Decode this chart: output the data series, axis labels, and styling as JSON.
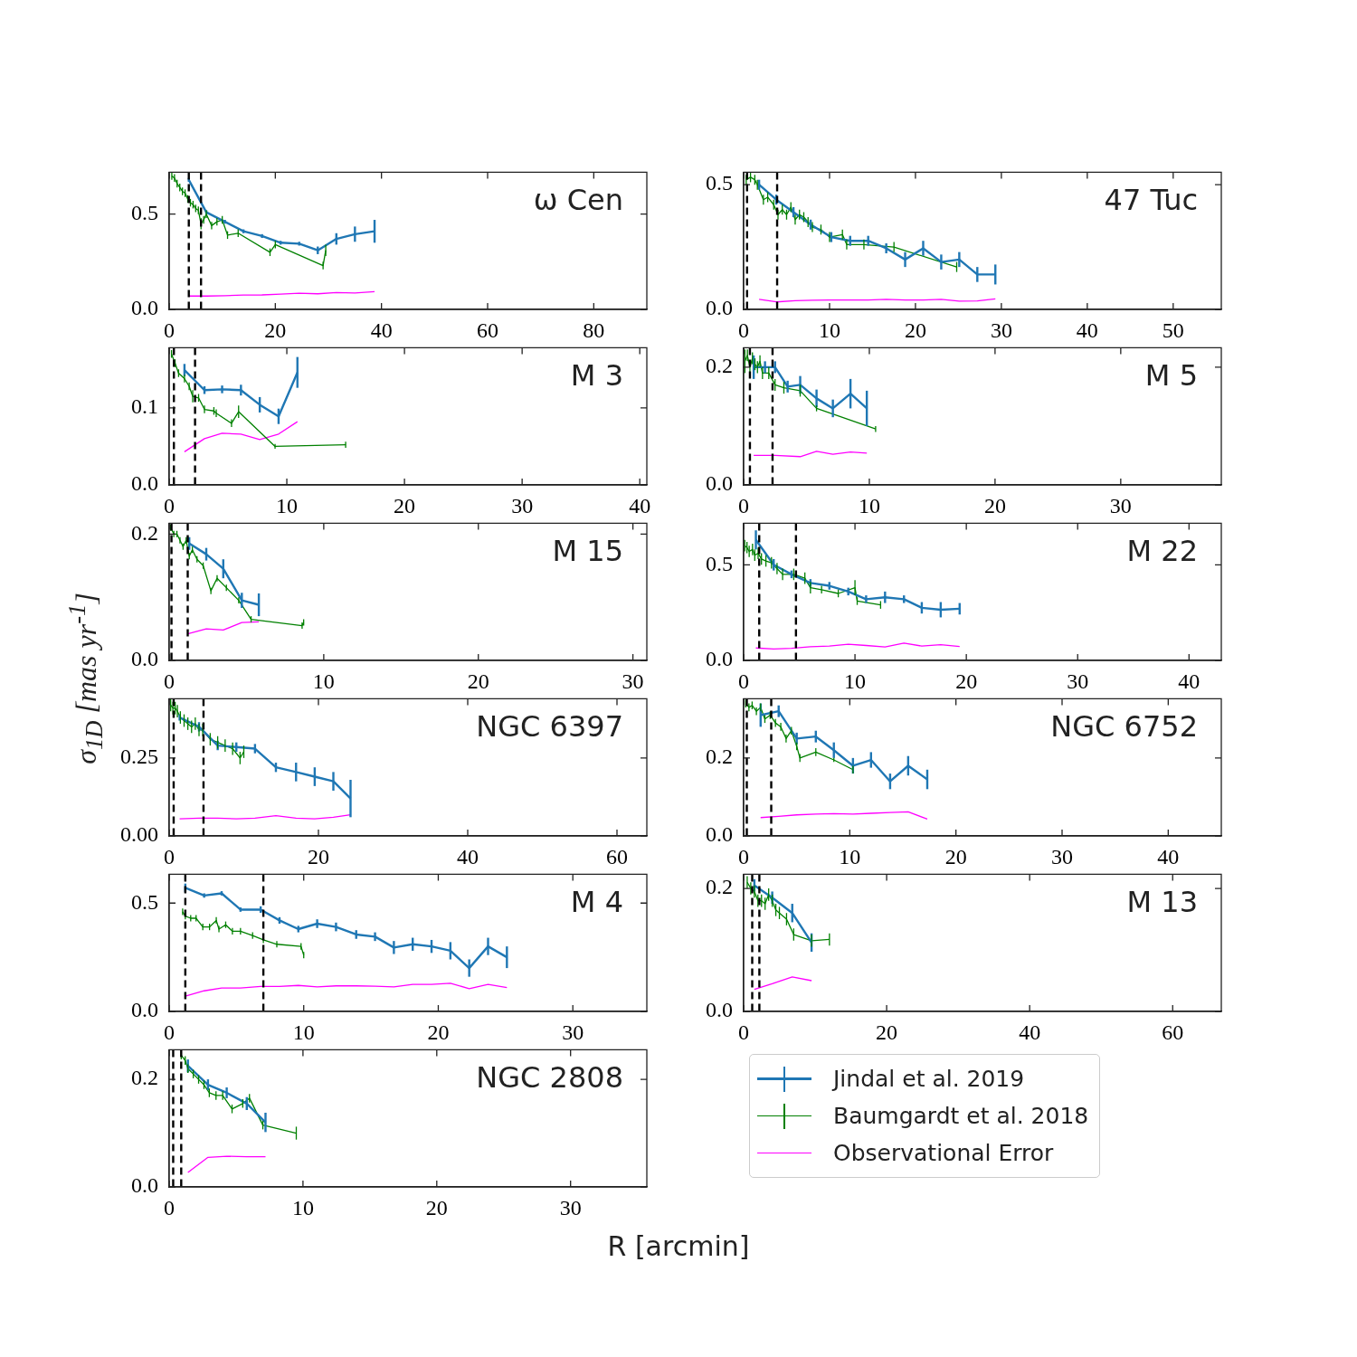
{
  "chart_data": [
    {
      "type": "line",
      "annotations": [
        "ω Cen"
      ],
      "xlim": [
        0,
        90
      ],
      "xticks": [
        0,
        20,
        40,
        60,
        80
      ],
      "ylim": [
        0,
        0.72
      ],
      "yticks": [
        {
          "value": 0,
          "label": "0.0"
        },
        {
          "value": 0.5,
          "label": "0.5"
        }
      ],
      "ref_lines": [
        {
          "axis": "x",
          "value": 3.7,
          "color": "#000000",
          "line_style": "dashed"
        },
        {
          "axis": "x",
          "value": 6.0,
          "color": "#000000",
          "line_style": "dashed"
        }
      ],
      "series": [
        {
          "color": "#1f77b4",
          "x": [
            3.7,
            7,
            10.5,
            14,
            17.5,
            21,
            24.5,
            28,
            31.5,
            35,
            38.7
          ],
          "values": [
            0.68,
            0.51,
            0.46,
            0.41,
            0.385,
            0.35,
            0.345,
            0.31,
            0.37,
            0.395,
            0.41
          ],
          "errors": [
            0.01,
            0.01,
            0.01,
            0.01,
            0.01,
            0.01,
            0.01,
            0.02,
            0.03,
            0.04,
            0.06
          ]
        },
        {
          "color": "#008000",
          "x": [
            0.5,
            1,
            1.5,
            2,
            2.5,
            3,
            3.5,
            4,
            4.5,
            5,
            5.5,
            6,
            6.5,
            7,
            8,
            9,
            10,
            11,
            13,
            19,
            20,
            29,
            29.5
          ],
          "values": [
            0.7,
            0.69,
            0.66,
            0.64,
            0.62,
            0.61,
            0.58,
            0.56,
            0.55,
            0.53,
            0.52,
            0.45,
            0.47,
            0.5,
            0.44,
            0.46,
            0.47,
            0.39,
            0.4,
            0.3,
            0.34,
            0.23,
            0.31
          ],
          "errors": [
            0.02,
            0.02,
            0.02,
            0.02,
            0.02,
            0.02,
            0.02,
            0.02,
            0.02,
            0.02,
            0.02,
            0.03,
            0.02,
            0.02,
            0.02,
            0.02,
            0.02,
            0.02,
            0.02,
            0.02,
            0.02,
            0.02,
            0.03
          ]
        },
        {
          "color": "#ff00ff",
          "x": [
            3.7,
            7,
            10.5,
            14,
            17.5,
            21,
            24.5,
            28,
            31.5,
            35,
            38.7
          ],
          "values": [
            0.07,
            0.07,
            0.072,
            0.075,
            0.076,
            0.08,
            0.085,
            0.082,
            0.088,
            0.086,
            0.093
          ]
        }
      ]
    },
    {
      "type": "line",
      "annotations": [
        "47 Tuc"
      ],
      "xlim": [
        0,
        55.6
      ],
      "xticks": [
        0,
        10,
        20,
        30,
        40,
        50
      ],
      "ylim": [
        0,
        0.55
      ],
      "yticks": [
        {
          "value": 0,
          "label": "0.0"
        },
        {
          "value": 0.5,
          "label": "0.5"
        }
      ],
      "ref_lines": [
        {
          "axis": "x",
          "value": 0.4,
          "color": "#000000",
          "line_style": "dashed"
        },
        {
          "axis": "x",
          "value": 3.9,
          "color": "#000000",
          "line_style": "dashed"
        }
      ],
      "series": [
        {
          "color": "#1f77b4",
          "x": [
            1.8,
            3.8,
            5.8,
            7.8,
            10.2,
            12.4,
            14.5,
            16.6,
            18.8,
            20.9,
            23,
            25.1,
            27.2,
            29.3
          ],
          "values": [
            0.5,
            0.44,
            0.39,
            0.34,
            0.29,
            0.275,
            0.275,
            0.245,
            0.2,
            0.245,
            0.19,
            0.2,
            0.14,
            0.14
          ],
          "errors": [
            0.02,
            0.02,
            0.02,
            0.02,
            0.02,
            0.02,
            0.02,
            0.02,
            0.03,
            0.03,
            0.03,
            0.03,
            0.03,
            0.04
          ]
        },
        {
          "color": "#008000",
          "x": [
            0.3,
            0.8,
            1.3,
            1.6,
            2.3,
            2.8,
            3.5,
            4,
            4.5,
            5,
            5.5,
            6,
            6.5,
            7,
            7.5,
            8,
            9,
            10,
            11.5,
            12,
            14,
            17.5,
            24.8
          ],
          "values": [
            0.52,
            0.53,
            0.52,
            0.5,
            0.44,
            0.45,
            0.42,
            0.38,
            0.4,
            0.38,
            0.41,
            0.36,
            0.38,
            0.37,
            0.35,
            0.33,
            0.32,
            0.29,
            0.3,
            0.26,
            0.26,
            0.25,
            0.17
          ],
          "errors": [
            0.02,
            0.02,
            0.02,
            0.02,
            0.02,
            0.02,
            0.02,
            0.02,
            0.02,
            0.02,
            0.02,
            0.02,
            0.02,
            0.02,
            0.02,
            0.02,
            0.02,
            0.02,
            0.02,
            0.02,
            0.02,
            0.02,
            0.02
          ]
        },
        {
          "color": "#ff00ff",
          "x": [
            1.8,
            3.8,
            6,
            8,
            10,
            12,
            14.5,
            16.6,
            18.8,
            20.9,
            23,
            25.1,
            27.2,
            29.3
          ],
          "values": [
            0.04,
            0.03,
            0.035,
            0.037,
            0.038,
            0.038,
            0.038,
            0.04,
            0.038,
            0.038,
            0.04,
            0.033,
            0.034,
            0.042
          ]
        }
      ]
    },
    {
      "type": "line",
      "annotations": [
        "M 3"
      ],
      "xlim": [
        0,
        40.6
      ],
      "xticks": [
        0,
        10,
        20,
        30,
        40
      ],
      "ylim": [
        0,
        0.178
      ],
      "yticks": [
        {
          "value": 0,
          "label": "0.0"
        },
        {
          "value": 0.1,
          "label": "0.1"
        }
      ],
      "ref_lines": [
        {
          "axis": "x",
          "value": 0.4,
          "color": "#000000",
          "line_style": "dashed"
        },
        {
          "axis": "x",
          "value": 2.2,
          "color": "#000000",
          "line_style": "dashed"
        }
      ],
      "series": [
        {
          "color": "#1f77b4",
          "x": [
            1.3,
            3,
            4.5,
            6.1,
            7.7,
            9.3,
            10.9
          ],
          "values": [
            0.149,
            0.123,
            0.124,
            0.123,
            0.104,
            0.089,
            0.146
          ],
          "errors": [
            0.008,
            0.005,
            0.005,
            0.007,
            0.01,
            0.01,
            0.02
          ]
        },
        {
          "color": "#008000",
          "x": [
            0.2,
            0.5,
            0.8,
            1.3,
            1.7,
            2,
            2.5,
            3,
            3.8,
            4,
            5.3,
            5.9,
            9,
            15
          ],
          "values": [
            0.17,
            0.158,
            0.145,
            0.138,
            0.128,
            0.115,
            0.113,
            0.098,
            0.096,
            0.093,
            0.08,
            0.095,
            0.05,
            0.052
          ],
          "errors": [
            0.005,
            0.005,
            0.005,
            0.005,
            0.005,
            0.008,
            0.005,
            0.005,
            0.005,
            0.005,
            0.005,
            0.008,
            0.003,
            0.004
          ]
        },
        {
          "color": "#ff00ff",
          "x": [
            1.3,
            3,
            4.5,
            6.1,
            7.7,
            9.3,
            10.9
          ],
          "values": [
            0.043,
            0.06,
            0.067,
            0.066,
            0.059,
            0.066,
            0.082
          ]
        }
      ]
    },
    {
      "type": "line",
      "annotations": [
        "M 5"
      ],
      "xlim": [
        0,
        38
      ],
      "xticks": [
        0,
        10,
        20,
        30
      ],
      "ylim": [
        0,
        0.233
      ],
      "yticks": [
        {
          "value": 0,
          "label": "0.0"
        },
        {
          "value": 0.2,
          "label": "0.2"
        }
      ],
      "ref_lines": [
        {
          "axis": "x",
          "value": 0.5,
          "color": "#000000",
          "line_style": "dashed"
        },
        {
          "axis": "x",
          "value": 2.3,
          "color": "#000000",
          "line_style": "dashed"
        }
      ],
      "series": [
        {
          "color": "#1f77b4",
          "x": [
            0.8,
            1.7,
            2.5,
            3.5,
            4.5,
            5.8,
            7.1,
            8.5,
            9.8
          ],
          "values": [
            0.2,
            0.2,
            0.2,
            0.167,
            0.17,
            0.147,
            0.13,
            0.155,
            0.13
          ],
          "errors": [
            0.02,
            0.01,
            0.01,
            0.01,
            0.015,
            0.015,
            0.015,
            0.025,
            0.03
          ]
        },
        {
          "color": "#008000",
          "x": [
            0.1,
            0.3,
            0.5,
            0.7,
            0.9,
            1.1,
            1.3,
            1.5,
            2,
            2.5,
            3.2,
            4.5,
            5.8,
            10.5
          ],
          "values": [
            0.21,
            0.22,
            0.2,
            0.215,
            0.205,
            0.2,
            0.21,
            0.19,
            0.19,
            0.17,
            0.165,
            0.16,
            0.13,
            0.095
          ],
          "errors": [
            0.02,
            0.01,
            0.01,
            0.01,
            0.01,
            0.01,
            0.01,
            0.01,
            0.01,
            0.01,
            0.01,
            0.01,
            0.005,
            0.005
          ]
        },
        {
          "color": "#ff00ff",
          "x": [
            0.8,
            2.5,
            4.5,
            5.8,
            7.1,
            8.5,
            9.8
          ],
          "values": [
            0.05,
            0.05,
            0.048,
            0.057,
            0.052,
            0.056,
            0.054
          ]
        }
      ]
    },
    {
      "type": "line",
      "annotations": [
        "M 15"
      ],
      "xlim": [
        0,
        30.9
      ],
      "xticks": [
        0,
        10,
        20,
        30
      ],
      "ylim": [
        0,
        0.217
      ],
      "yticks": [
        {
          "value": 0,
          "label": "0.0"
        },
        {
          "value": 0.2,
          "label": "0.2"
        }
      ],
      "ref_lines": [
        {
          "axis": "x",
          "value": 0.15,
          "color": "#000000",
          "line_style": "dashed"
        },
        {
          "axis": "x",
          "value": 1.2,
          "color": "#000000",
          "line_style": "dashed"
        }
      ],
      "series": [
        {
          "color": "#1f77b4",
          "x": [
            1.3,
            2.4,
            3.5,
            4.7,
            5.8
          ],
          "values": [
            0.185,
            0.168,
            0.145,
            0.095,
            0.088
          ],
          "errors": [
            0.01,
            0.01,
            0.015,
            0.012,
            0.018
          ]
        },
        {
          "color": "#008000",
          "x": [
            0.1,
            0.3,
            0.5,
            0.7,
            0.9,
            1.1,
            1.3,
            1.5,
            1.8,
            2.2,
            2.7,
            3.1,
            3.7,
            4.5,
            5.3,
            8.6,
            8.7
          ],
          "values": [
            0.21,
            0.2,
            0.2,
            0.19,
            0.18,
            0.19,
            0.165,
            0.175,
            0.16,
            0.15,
            0.11,
            0.13,
            0.115,
            0.095,
            0.065,
            0.055,
            0.06
          ],
          "errors": [
            0.005,
            0.005,
            0.005,
            0.005,
            0.005,
            0.005,
            0.005,
            0.005,
            0.005,
            0.005,
            0.005,
            0.005,
            0.005,
            0.005,
            0.005,
            0.005,
            0.005
          ]
        },
        {
          "color": "#ff00ff",
          "x": [
            1.2,
            2.4,
            3.5,
            4.7,
            5.8
          ],
          "values": [
            0.042,
            0.05,
            0.048,
            0.06,
            0.061
          ]
        }
      ]
    },
    {
      "type": "line",
      "annotations": [
        "M 22"
      ],
      "xlim": [
        0,
        42.9
      ],
      "xticks": [
        0,
        10,
        20,
        30,
        40
      ],
      "ylim": [
        0,
        0.717
      ],
      "yticks": [
        {
          "value": 0,
          "label": "0.0"
        },
        {
          "value": 0.5,
          "label": "0.5"
        }
      ],
      "ref_lines": [
        {
          "axis": "x",
          "value": 1.4,
          "color": "#000000",
          "line_style": "dashed"
        },
        {
          "axis": "x",
          "value": 4.7,
          "color": "#000000",
          "line_style": "dashed"
        }
      ],
      "series": [
        {
          "color": "#1f77b4",
          "x": [
            1.1,
            2.7,
            4.3,
            6,
            7.7,
            9.4,
            11,
            12.7,
            14.4,
            16,
            17.7,
            19.4
          ],
          "values": [
            0.63,
            0.5,
            0.45,
            0.405,
            0.39,
            0.36,
            0.32,
            0.33,
            0.32,
            0.275,
            0.265,
            0.27
          ],
          "errors": [
            0.05,
            0.03,
            0.02,
            0.02,
            0.02,
            0.02,
            0.02,
            0.03,
            0.02,
            0.03,
            0.04,
            0.03
          ]
        },
        {
          "color": "#008000",
          "x": [
            0.1,
            0.3,
            0.5,
            0.8,
            1,
            1.3,
            1.6,
            2,
            2.5,
            3,
            3.5,
            4.5,
            5.5,
            6,
            7,
            8.5,
            10,
            10.2,
            12.3
          ],
          "values": [
            0.6,
            0.59,
            0.57,
            0.58,
            0.55,
            0.56,
            0.53,
            0.52,
            0.51,
            0.48,
            0.45,
            0.45,
            0.43,
            0.38,
            0.37,
            0.35,
            0.38,
            0.31,
            0.29
          ],
          "errors": [
            0.03,
            0.03,
            0.03,
            0.03,
            0.03,
            0.03,
            0.03,
            0.03,
            0.03,
            0.03,
            0.03,
            0.03,
            0.03,
            0.03,
            0.02,
            0.02,
            0.04,
            0.02,
            0.02
          ]
        },
        {
          "color": "#ff00ff",
          "x": [
            1.1,
            2.7,
            4.3,
            6,
            7.7,
            9.4,
            11,
            12.7,
            14.4,
            16,
            17.7,
            19.4
          ],
          "values": [
            0.065,
            0.06,
            0.063,
            0.072,
            0.075,
            0.085,
            0.078,
            0.07,
            0.09,
            0.075,
            0.082,
            0.073
          ]
        }
      ]
    },
    {
      "type": "line",
      "annotations": [
        "NGC 6397"
      ],
      "ylabel": "σ$_{1D}$ [mas yr$^{-1}$]",
      "xlim": [
        0,
        64
      ],
      "xticks": [
        0,
        20,
        40,
        60
      ],
      "ylim": [
        0,
        0.44
      ],
      "yticks": [
        {
          "value": 0,
          "label": "0.00"
        },
        0.25
      ],
      "ref_lines": [
        {
          "axis": "x",
          "value": 0.6,
          "color": "#000000",
          "line_style": "dashed"
        },
        {
          "axis": "x",
          "value": 4.6,
          "color": "#000000",
          "line_style": "dashed"
        }
      ],
      "series": [
        {
          "color": "#1f77b4",
          "x": [
            1.4,
            4,
            6.5,
            9,
            11.5,
            14.3,
            17,
            19.5,
            22,
            24.3
          ],
          "values": [
            0.38,
            0.35,
            0.29,
            0.285,
            0.28,
            0.22,
            0.205,
            0.19,
            0.175,
            0.12
          ],
          "errors": [
            0.01,
            0.015,
            0.015,
            0.015,
            0.015,
            0.015,
            0.03,
            0.03,
            0.03,
            0.06
          ]
        },
        {
          "color": "#008000",
          "x": [
            0.2,
            0.5,
            0.8,
            1.1,
            1.5,
            2,
            2.5,
            3,
            3.5,
            4,
            4.5,
            5.5,
            6.5,
            7.5,
            8.5,
            9.5,
            10
          ],
          "values": [
            0.42,
            0.41,
            0.41,
            0.4,
            0.38,
            0.37,
            0.36,
            0.35,
            0.36,
            0.34,
            0.34,
            0.31,
            0.3,
            0.29,
            0.28,
            0.25,
            0.27
          ],
          "errors": [
            0.02,
            0.02,
            0.02,
            0.02,
            0.02,
            0.02,
            0.02,
            0.02,
            0.02,
            0.02,
            0.02,
            0.02,
            0.02,
            0.02,
            0.02,
            0.02,
            0.02
          ]
        },
        {
          "color": "#ff00ff",
          "x": [
            1.4,
            4,
            6.5,
            9,
            11.5,
            14.3,
            17,
            19.5,
            22,
            24.3
          ],
          "values": [
            0.055,
            0.057,
            0.057,
            0.055,
            0.057,
            0.065,
            0.057,
            0.055,
            0.06,
            0.068
          ]
        }
      ]
    },
    {
      "type": "line",
      "annotations": [
        "NGC 6752"
      ],
      "xlim": [
        0,
        45
      ],
      "xticks": [
        0,
        10,
        20,
        30,
        40
      ],
      "ylim": [
        0,
        0.352
      ],
      "yticks": [
        {
          "value": 0,
          "label": "0.0"
        },
        {
          "value": 0.2,
          "label": "0.2"
        }
      ],
      "ref_lines": [
        {
          "axis": "x",
          "value": 0.3,
          "color": "#000000",
          "line_style": "dashed"
        },
        {
          "axis": "x",
          "value": 2.6,
          "color": "#000000",
          "line_style": "dashed"
        }
      ],
      "series": [
        {
          "color": "#1f77b4",
          "x": [
            1.6,
            3.3,
            5,
            6.8,
            8.5,
            10.3,
            12,
            13.8,
            15.5,
            17.3
          ],
          "values": [
            0.31,
            0.32,
            0.25,
            0.255,
            0.22,
            0.18,
            0.195,
            0.14,
            0.18,
            0.145
          ],
          "errors": [
            0.03,
            0.015,
            0.015,
            0.015,
            0.02,
            0.02,
            0.02,
            0.02,
            0.025,
            0.025
          ]
        },
        {
          "color": "#008000",
          "x": [
            0.2,
            0.5,
            0.8,
            1.2,
            1.6,
            2,
            2.5,
            3,
            3.5,
            4,
            4.5,
            5,
            5.3,
            6.8,
            8.5,
            10.3
          ],
          "values": [
            0.34,
            0.33,
            0.335,
            0.32,
            0.33,
            0.3,
            0.31,
            0.29,
            0.28,
            0.25,
            0.27,
            0.23,
            0.2,
            0.215,
            0.195,
            0.17
          ],
          "errors": [
            0.01,
            0.01,
            0.01,
            0.01,
            0.01,
            0.01,
            0.01,
            0.01,
            0.01,
            0.01,
            0.01,
            0.01,
            0.01,
            0.01,
            0.005,
            0.01
          ]
        },
        {
          "color": "#ff00ff",
          "x": [
            1.6,
            3.3,
            5,
            6.8,
            8.5,
            10.3,
            12,
            13.8,
            15.5,
            17.3
          ],
          "values": [
            0.047,
            0.05,
            0.054,
            0.056,
            0.057,
            0.056,
            0.058,
            0.06,
            0.062,
            0.043
          ]
        }
      ]
    },
    {
      "type": "line",
      "annotations": [
        "M 4"
      ],
      "xlim": [
        0,
        35.5
      ],
      "xticks": [
        0,
        10,
        20,
        30
      ],
      "ylim": [
        0,
        0.633
      ],
      "yticks": [
        {
          "value": 0,
          "label": "0.0"
        },
        {
          "value": 0.5,
          "label": "0.5"
        }
      ],
      "ref_lines": [
        {
          "axis": "x",
          "value": 1.2,
          "color": "#000000",
          "line_style": "dashed"
        },
        {
          "axis": "x",
          "value": 7.0,
          "color": "#000000",
          "line_style": "dashed"
        }
      ],
      "series": [
        {
          "color": "#1f77b4",
          "x": [
            1.2,
            2.6,
            3.9,
            5.3,
            6.8,
            8.2,
            9.6,
            11,
            12.4,
            13.9,
            15.3,
            16.7,
            18.1,
            19.5,
            20.9,
            22.3,
            23.7,
            25.1
          ],
          "values": [
            0.57,
            0.535,
            0.545,
            0.47,
            0.47,
            0.42,
            0.38,
            0.405,
            0.39,
            0.355,
            0.345,
            0.295,
            0.31,
            0.3,
            0.28,
            0.2,
            0.3,
            0.25
          ],
          "errors": [
            0.02,
            0.01,
            0.01,
            0.01,
            0.015,
            0.015,
            0.015,
            0.02,
            0.02,
            0.02,
            0.02,
            0.03,
            0.03,
            0.03,
            0.04,
            0.04,
            0.04,
            0.05
          ]
        },
        {
          "color": "#008000",
          "x": [
            1,
            1.2,
            1.6,
            2,
            2.5,
            3,
            3.5,
            3.7,
            4.2,
            4.7,
            5.3,
            6.2,
            7,
            8,
            9.8,
            10
          ],
          "values": [
            0.46,
            0.44,
            0.43,
            0.43,
            0.39,
            0.39,
            0.42,
            0.38,
            0.4,
            0.37,
            0.37,
            0.35,
            0.33,
            0.31,
            0.3,
            0.26
          ],
          "errors": [
            0.015,
            0.015,
            0.015,
            0.015,
            0.015,
            0.015,
            0.015,
            0.015,
            0.015,
            0.015,
            0.015,
            0.015,
            0.015,
            0.015,
            0.015,
            0.015
          ]
        },
        {
          "color": "#ff00ff",
          "x": [
            1.2,
            2.6,
            3.9,
            5.3,
            6.8,
            8.2,
            9.6,
            11,
            12.4,
            13.9,
            15.3,
            16.7,
            18.1,
            19.5,
            20.9,
            22.3,
            23.7,
            25.1
          ],
          "values": [
            0.07,
            0.095,
            0.108,
            0.108,
            0.115,
            0.115,
            0.12,
            0.113,
            0.118,
            0.118,
            0.116,
            0.113,
            0.125,
            0.125,
            0.13,
            0.105,
            0.125,
            0.11
          ]
        }
      ]
    },
    {
      "type": "line",
      "annotations": [
        "M 13"
      ],
      "xlim": [
        0,
        66.8
      ],
      "xticks": [
        0,
        20,
        40,
        60
      ],
      "ylim": [
        0,
        0.223
      ],
      "yticks": [
        {
          "value": 0,
          "label": "0.0"
        },
        {
          "value": 0.2,
          "label": "0.2"
        }
      ],
      "ref_lines": [
        {
          "axis": "x",
          "value": 1.2,
          "color": "#000000",
          "line_style": "dashed"
        },
        {
          "axis": "x",
          "value": 2.2,
          "color": "#000000",
          "line_style": "dashed"
        }
      ],
      "series": [
        {
          "color": "#1f77b4",
          "x": [
            1.5,
            4,
            6.8,
            9.5
          ],
          "values": [
            0.205,
            0.185,
            0.16,
            0.112
          ],
          "errors": [
            0.01,
            0.01,
            0.015,
            0.015
          ]
        },
        {
          "color": "#008000",
          "x": [
            0.5,
            1,
            1.5,
            2,
            2.5,
            3,
            3.5,
            4,
            4.5,
            5,
            6,
            7,
            9.5,
            12
          ],
          "values": [
            0.21,
            0.2,
            0.195,
            0.18,
            0.18,
            0.175,
            0.19,
            0.18,
            0.165,
            0.16,
            0.15,
            0.125,
            0.115,
            0.117
          ],
          "errors": [
            0.01,
            0.01,
            0.01,
            0.01,
            0.01,
            0.01,
            0.01,
            0.01,
            0.01,
            0.01,
            0.01,
            0.01,
            0.01,
            0.01
          ]
        },
        {
          "color": "#ff00ff",
          "x": [
            1.5,
            4,
            6.8,
            9.5
          ],
          "values": [
            0.036,
            0.045,
            0.056,
            0.05
          ]
        }
      ]
    },
    {
      "type": "line",
      "annotations": [
        "NGC 2808"
      ],
      "xlabel": "R [arcmin]",
      "legend": "right",
      "xlim": [
        0,
        35.7
      ],
      "xticks": [
        0,
        10,
        20,
        30
      ],
      "ylim": [
        0,
        0.255
      ],
      "yticks": [
        {
          "value": 0,
          "label": "0.0"
        },
        {
          "value": 0.2,
          "label": "0.2"
        }
      ],
      "ref_lines": [
        {
          "axis": "x",
          "value": 0.3,
          "color": "#000000",
          "line_style": "dashed"
        },
        {
          "axis": "x",
          "value": 0.9,
          "color": "#000000",
          "line_style": "dashed"
        }
      ],
      "series": [
        {
          "name": "Jindal et al. 2019",
          "color": "#1f77b4",
          "x": [
            1.4,
            2.9,
            4.3,
            5.8,
            7.2
          ],
          "values": [
            0.225,
            0.19,
            0.175,
            0.155,
            0.12
          ],
          "errors": [
            0.012,
            0.01,
            0.01,
            0.012,
            0.018
          ]
        },
        {
          "name": "Baumgardt et al. 2018",
          "color": "#008000",
          "x": [
            0.9,
            1.2,
            1.4,
            1.8,
            2.2,
            2.6,
            3,
            3.5,
            4,
            4.7,
            5.5,
            6,
            7,
            9.5
          ],
          "values": [
            0.245,
            0.235,
            0.22,
            0.21,
            0.2,
            0.19,
            0.175,
            0.17,
            0.17,
            0.145,
            0.155,
            0.165,
            0.115,
            0.1
          ],
          "errors": [
            0.008,
            0.008,
            0.008,
            0.008,
            0.008,
            0.008,
            0.008,
            0.008,
            0.008,
            0.008,
            0.008,
            0.008,
            0.008,
            0.012
          ]
        },
        {
          "name": "Observational Error",
          "color": "#ff00ff",
          "x": [
            1.4,
            2.9,
            4.3,
            5.8,
            7.2
          ],
          "values": [
            0.027,
            0.055,
            0.057,
            0.056,
            0.056
          ]
        }
      ]
    }
  ]
}
